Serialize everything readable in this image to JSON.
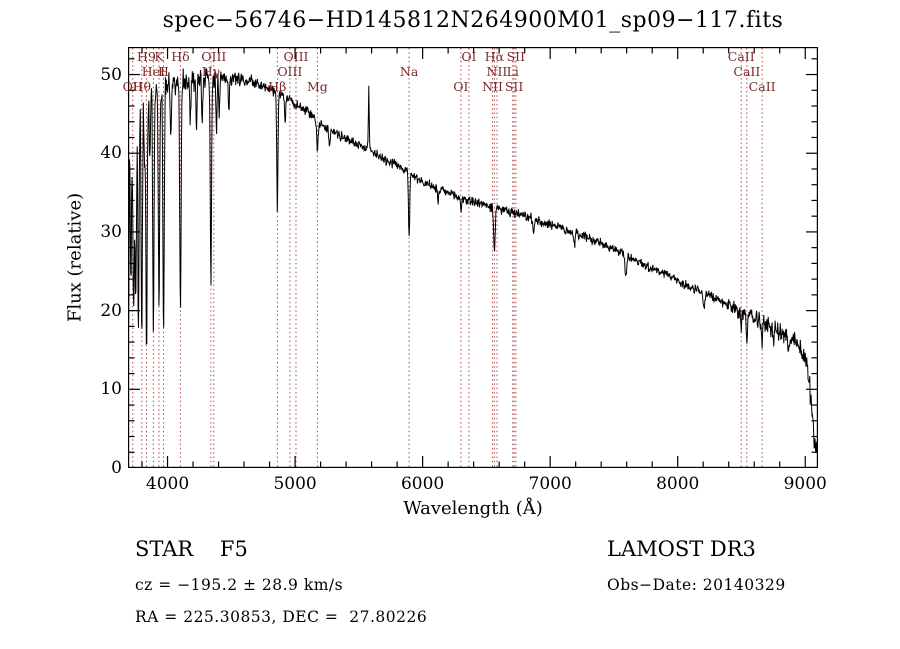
{
  "colors": {
    "background": "#ffffff",
    "spectrum_line": "#000000",
    "frame": "#000000",
    "marker_line": "#b04a4a",
    "marker_label": "#7e2a2a"
  },
  "chart_data": {
    "type": "line",
    "title": "spec−56746−HD145812N264900M01_sp09−117.fits",
    "xlabel": "Wavelength (Å)",
    "ylabel": "Flux (relative)",
    "xlim": [
      3690,
      9100
    ],
    "ylim": [
      0,
      53.5
    ],
    "x_ticks": [
      4000,
      5000,
      6000,
      7000,
      8000,
      9000
    ],
    "y_ticks": [
      0,
      10,
      20,
      30,
      40,
      50
    ],
    "x_minor_step": 200,
    "y_minor_step": 2,
    "continuum": [
      [
        3690,
        44.5
      ],
      [
        3740,
        46.2
      ],
      [
        3800,
        47.2
      ],
      [
        3900,
        48.2
      ],
      [
        4000,
        48.7
      ],
      [
        4150,
        49.2
      ],
      [
        4300,
        49.5
      ],
      [
        4500,
        49.6
      ],
      [
        4650,
        49.2
      ],
      [
        4800,
        48.2
      ],
      [
        4950,
        46.8
      ],
      [
        5100,
        45.2
      ],
      [
        5250,
        43.2
      ],
      [
        5400,
        41.8
      ],
      [
        5550,
        40.8
      ],
      [
        5700,
        39.3
      ],
      [
        5850,
        38.1
      ],
      [
        6000,
        36.4
      ],
      [
        6150,
        35.2
      ],
      [
        6300,
        34.3
      ],
      [
        6450,
        33.6
      ],
      [
        6600,
        32.9
      ],
      [
        6750,
        32.2
      ],
      [
        6900,
        31.5
      ],
      [
        7050,
        30.7
      ],
      [
        7200,
        29.9
      ],
      [
        7350,
        28.9
      ],
      [
        7500,
        27.8
      ],
      [
        7650,
        26.6
      ],
      [
        7800,
        25.4
      ],
      [
        7950,
        24.2
      ],
      [
        8100,
        23.0
      ],
      [
        8250,
        21.8
      ],
      [
        8400,
        20.7
      ],
      [
        8550,
        19.4
      ],
      [
        8700,
        18.2
      ],
      [
        8820,
        17.0
      ],
      [
        8900,
        16.2
      ],
      [
        8960,
        15.3
      ],
      [
        9010,
        13.8
      ],
      [
        9040,
        9.5
      ],
      [
        9070,
        4.0
      ],
      [
        9100,
        1.0
      ]
    ],
    "absorption_lines": [
      [
        3694,
        28,
        4
      ],
      [
        3712,
        22,
        5
      ],
      [
        3727,
        9,
        4
      ],
      [
        3736,
        25,
        5
      ],
      [
        3751,
        27,
        5
      ],
      [
        3772,
        29,
        5
      ],
      [
        3798,
        31,
        5
      ],
      [
        3820,
        10,
        4
      ],
      [
        3835,
        33,
        5
      ],
      [
        3861,
        9,
        4
      ],
      [
        3889,
        32,
        5
      ],
      [
        3933,
        29,
        5
      ],
      [
        3969,
        33,
        5
      ],
      [
        4026,
        7,
        4
      ],
      [
        4101,
        30,
        5
      ],
      [
        4178,
        6,
        4
      ],
      [
        4227,
        6,
        4
      ],
      [
        4272,
        5,
        4
      ],
      [
        4340,
        26,
        5
      ],
      [
        4384,
        7,
        4
      ],
      [
        4406,
        5,
        4
      ],
      [
        4481,
        4,
        4
      ],
      [
        4861,
        15,
        4.5
      ],
      [
        4922,
        3.5,
        4
      ],
      [
        5175,
        3.5,
        6
      ],
      [
        5270,
        2.5,
        5
      ],
      [
        5894,
        8.5,
        5
      ],
      [
        6122,
        2,
        4
      ],
      [
        6302,
        1.5,
        4
      ],
      [
        6563,
        5.5,
        6
      ],
      [
        6870,
        2,
        6
      ],
      [
        7190,
        1.5,
        6
      ],
      [
        7594,
        2.5,
        7
      ],
      [
        8205,
        1.8,
        6
      ],
      [
        8498,
        2.2,
        4
      ],
      [
        8542,
        3,
        4
      ],
      [
        8662,
        2.8,
        4
      ],
      [
        8752,
        2,
        4
      ],
      [
        8866,
        2.5,
        4
      ]
    ],
    "emission_lines": [
      [
        5578,
        8,
        3
      ]
    ],
    "noise": {
      "seed": 987654321,
      "base": 0.55
    },
    "spectral_markers": [
      {
        "label": "H9",
        "wavelength": 3835,
        "row": 0
      },
      {
        "label": "K",
        "wavelength": 3933,
        "row": 0
      },
      {
        "label": "Hδ",
        "wavelength": 4101,
        "row": 0
      },
      {
        "label": "OIII",
        "wavelength": 4363,
        "row": 0
      },
      {
        "label": "OIII",
        "wavelength": 5007,
        "row": 0
      },
      {
        "label": "OI",
        "wavelength": 6363,
        "row": 0
      },
      {
        "label": "Hα",
        "wavelength": 6563,
        "row": 0
      },
      {
        "label": "SII",
        "wavelength": 6731,
        "row": 0
      },
      {
        "label": "CaII",
        "wavelength": 8498,
        "row": 0
      },
      {
        "label": "HeI",
        "wavelength": 3889,
        "row": 1
      },
      {
        "label": "H",
        "wavelength": 3968,
        "row": 1
      },
      {
        "label": "Hγ",
        "wavelength": 4340,
        "row": 1
      },
      {
        "label": "OIII",
        "wavelength": 4959,
        "row": 1
      },
      {
        "label": "Na",
        "wavelength": 5894,
        "row": 1
      },
      {
        "label": "NII",
        "wavelength": 6583,
        "row": 1
      },
      {
        "label": "Li",
        "wavelength": 6707,
        "row": 1
      },
      {
        "label": "CaII",
        "wavelength": 8542,
        "row": 1
      },
      {
        "label": "OII",
        "wavelength": 3727,
        "row": 2
      },
      {
        "label": "Hθ",
        "wavelength": 3798,
        "row": 2
      },
      {
        "label": "Hβ",
        "wavelength": 4861,
        "row": 2
      },
      {
        "label": "Mg",
        "wavelength": 5175,
        "row": 2
      },
      {
        "label": "OI",
        "wavelength": 6300,
        "row": 2
      },
      {
        "label": "NII",
        "wavelength": 6548,
        "row": 2
      },
      {
        "label": "SII",
        "wavelength": 6717,
        "row": 2
      },
      {
        "label": "CaII",
        "wavelength": 8662,
        "row": 2
      }
    ]
  },
  "annotations": {
    "class_label": "STAR    F5",
    "survey": "LAMOST DR3",
    "cz": "cz = −195.2 ± 28.9 km/s",
    "obs_date": "Obs−Date: 20140329",
    "coords": "RA = 225.30853, DEC =  27.80226"
  }
}
